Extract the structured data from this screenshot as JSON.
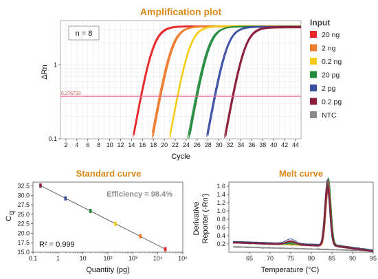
{
  "chart_data": [
    {
      "id": "amplification",
      "type": "line",
      "title": "Amplification plot",
      "xlabel": "Cycle",
      "ylabel": "ΔRn",
      "yscale": "log",
      "xlim": [
        1,
        45
      ],
      "ylim": [
        0.1,
        4
      ],
      "xticks": [
        2,
        4,
        6,
        8,
        10,
        12,
        14,
        16,
        18,
        20,
        22,
        24,
        26,
        28,
        30,
        32,
        34,
        36,
        38,
        40,
        42,
        44
      ],
      "yticks": [
        0.1,
        1
      ],
      "grid": true,
      "annotation": "n = 8",
      "threshold": {
        "value": 0.376759,
        "label": "0.376759",
        "color": "#f06aa0"
      },
      "legend_title": "Input",
      "legend_position": "right",
      "series": [
        {
          "name": "20 ng",
          "color": "#e8282b",
          "ct": 15.8,
          "plateau": 3.4
        },
        {
          "name": "2 ng",
          "color": "#ef7b2d",
          "ct": 19.2,
          "plateau": 3.4
        },
        {
          "name": "0.2 ng",
          "color": "#f4cc12",
          "ct": 22.5,
          "plateau": 3.4
        },
        {
          "name": "20 pg",
          "color": "#1f8a3b",
          "ct": 25.9,
          "plateau": 3.4
        },
        {
          "name": "2 pg",
          "color": "#3b4fa5",
          "ct": 29.2,
          "plateau": 3.35
        },
        {
          "name": "0.2 pg",
          "color": "#8c1f3a",
          "ct": 32.6,
          "plateau": 3.3
        },
        {
          "name": "NTC",
          "color": "#8a8a8a",
          "ct": null,
          "plateau": null
        }
      ]
    },
    {
      "id": "standard",
      "type": "scatter",
      "title": "Standard curve",
      "xlabel": "Quantity (pg)",
      "ylabel": "C",
      "ylabel_sub": "q",
      "xscale": "log",
      "xlim": [
        0.1,
        100000
      ],
      "ylim": [
        15,
        33.5
      ],
      "xticks": [
        "0.1",
        "1",
        "10",
        "10²",
        "10³",
        "10⁴",
        "10⁵"
      ],
      "yticks": [
        15.0,
        17.5,
        20.0,
        22.5,
        25.0,
        27.5,
        30.0,
        32.5
      ],
      "efficiency": "Efficiency = 98.4%",
      "r2": "R² = 0.999",
      "points": [
        {
          "x": 0.2,
          "y": 32.6,
          "color": "#8c1f3a"
        },
        {
          "x": 2,
          "y": 29.2,
          "color": "#3b4fa5"
        },
        {
          "x": 20,
          "y": 25.9,
          "color": "#1f8a3b"
        },
        {
          "x": 200,
          "y": 22.5,
          "color": "#f4cc12"
        },
        {
          "x": 2000,
          "y": 19.2,
          "color": "#ef7b2d"
        },
        {
          "x": 20000,
          "y": 15.8,
          "color": "#e8282b"
        }
      ]
    },
    {
      "id": "melt",
      "type": "line",
      "title": "Melt curve",
      "xlabel": "Temperature (°C)",
      "ylabel_lines": [
        "Derivative",
        "Reporter (-Rn')"
      ],
      "xlim": [
        60,
        95
      ],
      "ylim": [
        0,
        1.7
      ],
      "xticks": [
        65,
        70,
        75,
        80,
        85,
        90,
        95
      ],
      "yticks": [
        0.2,
        0.4,
        0.6,
        0.8,
        1.0,
        1.2,
        1.4,
        1.6
      ],
      "peak_temperature": 84
    }
  ]
}
